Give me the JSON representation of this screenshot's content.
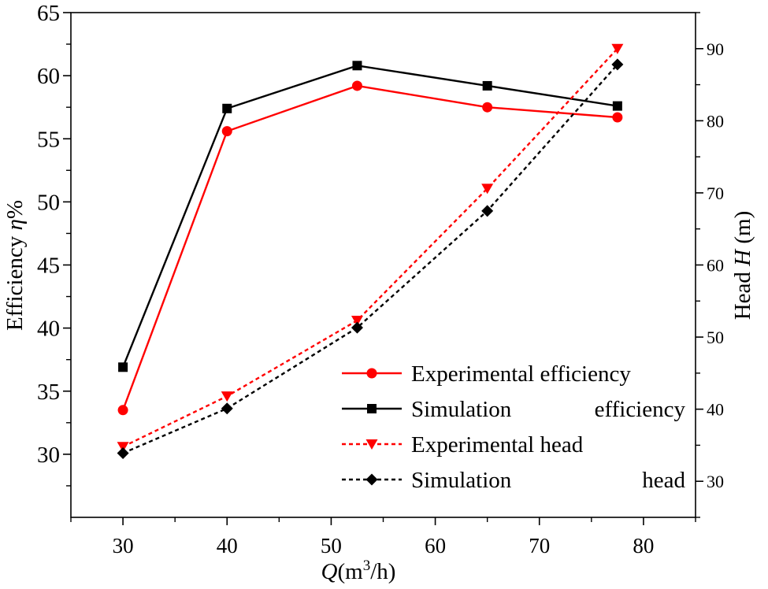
{
  "chart_data": {
    "type": "line",
    "x": [
      30,
      40,
      52.5,
      65,
      77.5
    ],
    "xlim": [
      25,
      85
    ],
    "xticks": [
      "30",
      "40",
      "50",
      "60",
      "70",
      "80"
    ],
    "xlabel": {
      "italic": "Q",
      "prefix": "(m",
      "sup": "3",
      "suffix": "/h)"
    },
    "y_left": {
      "label": {
        "prefix": "Efficiency ",
        "italic": "η",
        "suffix": "%"
      },
      "ylim": [
        25,
        65
      ],
      "ticks": [
        "30",
        "35",
        "40",
        "45",
        "50",
        "55",
        "60",
        "65"
      ]
    },
    "y_right": {
      "label": {
        "prefix": "Head ",
        "italic": "H",
        "suffix": " (m)"
      },
      "ylim": [
        25,
        95
      ],
      "ticks": [
        "30",
        "40",
        "50",
        "60",
        "70",
        "80",
        "90"
      ]
    },
    "series": [
      {
        "name": "Experimental efficiency",
        "axis": "left",
        "color": "#ff0000",
        "style": "solid",
        "marker": "circle",
        "values": [
          33.5,
          55.6,
          59.2,
          57.5,
          56.7
        ]
      },
      {
        "name": "Simulation efficiency",
        "axis": "left",
        "color": "#000000",
        "style": "solid",
        "marker": "square",
        "values": [
          36.9,
          57.4,
          60.8,
          59.2,
          57.6
        ]
      },
      {
        "name": "Experimental head",
        "axis": "right",
        "color": "#ff0000",
        "style": "dotted",
        "marker": "triangle-down",
        "values": [
          34.8,
          41.8,
          52.3,
          70.6,
          90.0
        ]
      },
      {
        "name": "Simulation head",
        "axis": "right",
        "color": "#000000",
        "style": "dotted",
        "marker": "diamond",
        "values": [
          33.9,
          40.1,
          51.3,
          67.5,
          87.8
        ]
      }
    ],
    "legend": {
      "position": "bottom-right",
      "entries": [
        {
          "left": "Experimental efficiency",
          "right": ""
        },
        {
          "left": "Simulation",
          "right": "efficiency"
        },
        {
          "left": "Experimental head",
          "right": ""
        },
        {
          "left": "Simulation",
          "right": "head"
        }
      ]
    }
  }
}
